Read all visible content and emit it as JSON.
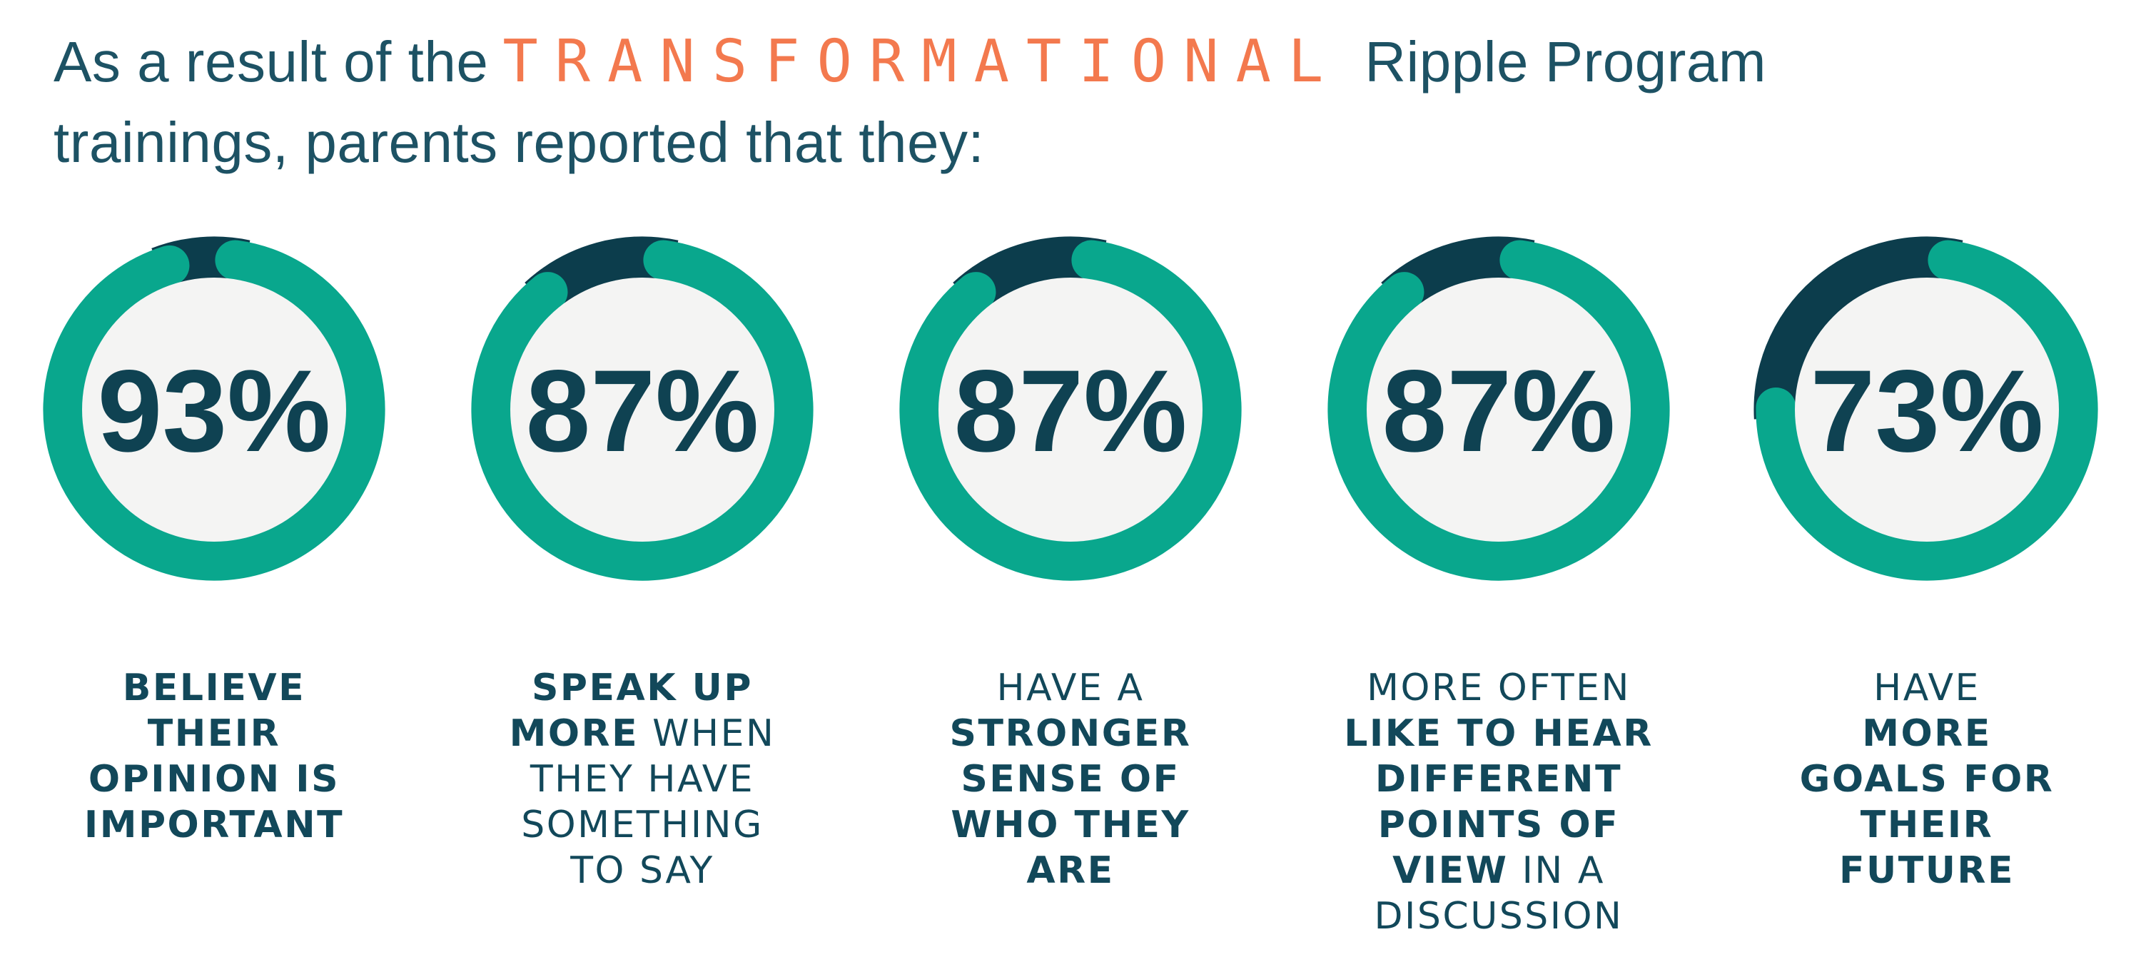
{
  "title": {
    "prefix": "As a result of the",
    "highlight": "TRANSFORMATIONAL",
    "suffix": "Ripple Program",
    "line2": "trainings, parents reported that they:"
  },
  "colors": {
    "background": "#ffffff",
    "green": "#09a78d",
    "navy": "#0c3d4c",
    "inner_circle": "#f4f4f3",
    "number": "#0f4252",
    "caption_text": "#12485a",
    "title_text": "#1d5264",
    "highlight_orange": "#f3794e"
  },
  "donut": {
    "start_angle_deg": 8,
    "ring_center_radius": 215,
    "ring_stroke_width": 57,
    "remainder_stroke_width": 60,
    "inner_circle_radius": 188
  },
  "stats": [
    {
      "percent": 93,
      "label": "93%",
      "caption_lines": [
        [
          {
            "text": "BELIEVE",
            "bold": true
          }
        ],
        [
          {
            "text": "THEIR",
            "bold": true
          }
        ],
        [
          {
            "text": "OPINION IS",
            "bold": true
          }
        ],
        [
          {
            "text": "IMPORTANT",
            "bold": true
          }
        ]
      ]
    },
    {
      "percent": 87,
      "label": "87%",
      "caption_lines": [
        [
          {
            "text": "SPEAK UP",
            "bold": true
          }
        ],
        [
          {
            "text": "MORE",
            "bold": true
          },
          {
            "text": "WHEN",
            "bold": false
          }
        ],
        [
          {
            "text": "THEY HAVE",
            "bold": false
          }
        ],
        [
          {
            "text": "SOMETHING",
            "bold": false
          }
        ],
        [
          {
            "text": "TO SAY",
            "bold": false
          }
        ]
      ]
    },
    {
      "percent": 87,
      "label": "87%",
      "caption_lines": [
        [
          {
            "text": "HAVE A",
            "bold": false
          }
        ],
        [
          {
            "text": "STRONGER",
            "bold": true
          }
        ],
        [
          {
            "text": "SENSE OF",
            "bold": true
          }
        ],
        [
          {
            "text": "WHO THEY",
            "bold": true
          }
        ],
        [
          {
            "text": "ARE",
            "bold": true
          }
        ]
      ]
    },
    {
      "percent": 87,
      "label": "87%",
      "caption_lines": [
        [
          {
            "text": "MORE OFTEN",
            "bold": false
          }
        ],
        [
          {
            "text": "LIKE TO HEAR",
            "bold": true
          }
        ],
        [
          {
            "text": "DIFFERENT",
            "bold": true
          }
        ],
        [
          {
            "text": "POINTS OF",
            "bold": true
          }
        ],
        [
          {
            "text": "VIEW",
            "bold": true
          },
          {
            "text": "IN A",
            "bold": false
          }
        ],
        [
          {
            "text": "DISCUSSION",
            "bold": false
          }
        ]
      ]
    },
    {
      "percent": 73,
      "label": "73%",
      "caption_lines": [
        [
          {
            "text": "HAVE",
            "bold": false
          }
        ],
        [
          {
            "text": "MORE",
            "bold": true
          }
        ],
        [
          {
            "text": "GOALS FOR",
            "bold": true
          }
        ],
        [
          {
            "text": "THEIR",
            "bold": true
          }
        ],
        [
          {
            "text": "FUTURE",
            "bold": true
          }
        ]
      ]
    }
  ],
  "chart_data": {
    "type": "pie",
    "subtype": "donut-percentage-rings",
    "title": "As a result of the TRANSFORMATIONAL Ripple Program trainings, parents reported that they:",
    "categories": [
      "Believe their opinion is important",
      "Speak up more when they have something to say",
      "Have a stronger sense of who they are",
      "More often like to hear different points of view in a discussion",
      "Have more goals for their future"
    ],
    "values": [
      93,
      87,
      87,
      87,
      73
    ],
    "value_unit": "%",
    "value_labels": [
      "93%",
      "87%",
      "87%",
      "87%",
      "73%"
    ],
    "filled_color": "#09a78d",
    "remainder_color": "#0c3d4c",
    "legend_position": "below-each-donut",
    "grid": false
  }
}
